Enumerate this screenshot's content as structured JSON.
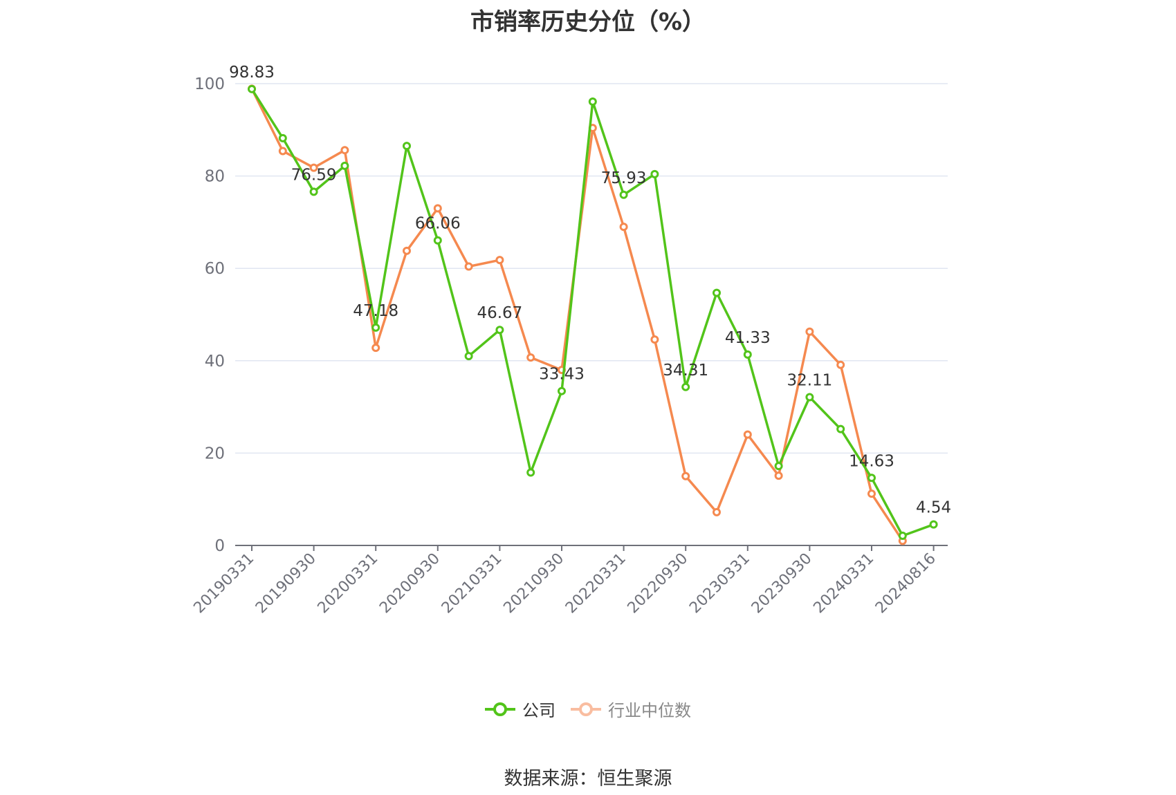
{
  "title": "市销率历史分位（%）",
  "source": "数据来源：恒生聚源",
  "chart_data": {
    "type": "line",
    "x": [
      "20190331",
      "20190630",
      "20190930",
      "20191231",
      "20200331",
      "20200630",
      "20200930",
      "20201231",
      "20210331",
      "20210630",
      "20210930",
      "20211231",
      "20220331",
      "20220630",
      "20220930",
      "20221231",
      "20230331",
      "20230630",
      "20230930",
      "20231231",
      "20240331",
      "20240630",
      "20240816"
    ],
    "x_tick_labels": [
      "20190331",
      "20190930",
      "20200331",
      "20200930",
      "20210331",
      "20210930",
      "20220331",
      "20220930",
      "20230331",
      "20230930",
      "20240331",
      "20240816"
    ],
    "y_ticks": [
      0,
      20,
      40,
      60,
      80,
      100
    ],
    "ylim": [
      0,
      100
    ],
    "grid": true,
    "legend_position": "bottom-center",
    "series": [
      {
        "name": "公司",
        "color": "#52c41a",
        "values": [
          98.83,
          88.2,
          76.59,
          82.2,
          47.18,
          86.5,
          66.06,
          41.0,
          46.67,
          15.8,
          33.43,
          96.1,
          75.93,
          80.4,
          34.31,
          54.7,
          41.33,
          17.2,
          32.11,
          25.2,
          14.63,
          2.1,
          4.54
        ],
        "labels": [
          "98.83",
          "",
          "76.59",
          "",
          "47.18",
          "",
          "66.06",
          "",
          "46.67",
          "",
          "33.43",
          "",
          "75.93",
          "",
          "34.31",
          "",
          "41.33",
          "",
          "32.11",
          "",
          "14.63",
          "",
          "4.54"
        ]
      },
      {
        "name": "行业中位数",
        "color": "#f5894f",
        "values": [
          98.9,
          85.4,
          81.8,
          85.6,
          42.8,
          63.8,
          73.0,
          60.4,
          61.8,
          40.7,
          38.0,
          90.4,
          69.0,
          44.6,
          15.0,
          7.2,
          24.0,
          15.1,
          46.3,
          39.1,
          11.2,
          1.0,
          null
        ]
      }
    ]
  }
}
